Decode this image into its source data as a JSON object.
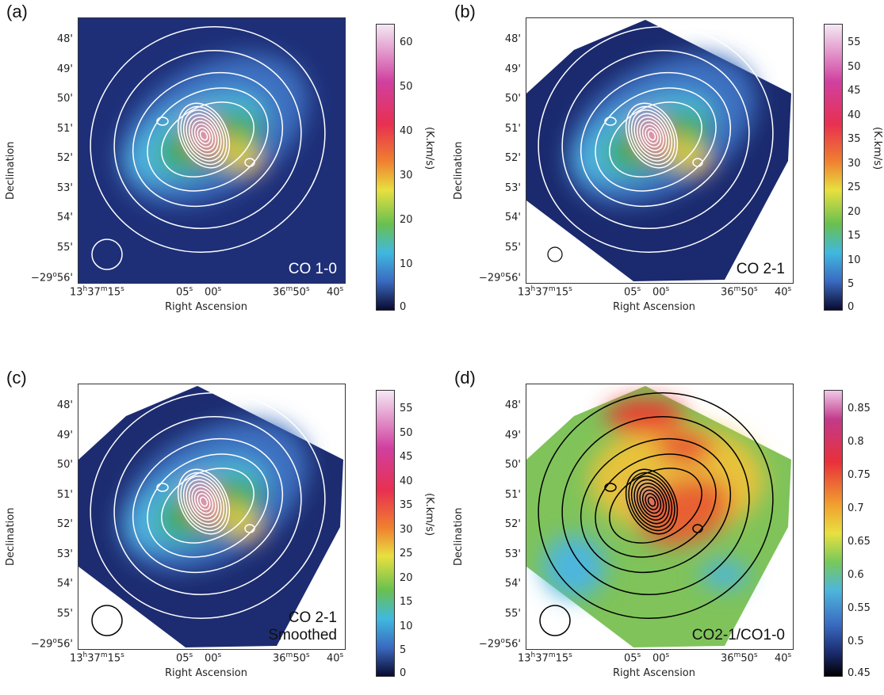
{
  "panels": [
    {
      "id": "a",
      "label": "(a)",
      "map_label": [
        "CO 1-0"
      ],
      "bg": "#1e2f78",
      "overlay": "white",
      "colorbar": {
        "ticks": [
          "60",
          "50",
          "40",
          "30",
          "20",
          "10",
          "0"
        ],
        "unit": "(K.km/s)",
        "scheme": "co"
      }
    },
    {
      "id": "b",
      "label": "(b)",
      "map_label": [
        "CO 2-1"
      ],
      "bg": "#1b2a6e",
      "overlay": "white",
      "colorbar": {
        "ticks": [
          "55",
          "50",
          "45",
          "40",
          "35",
          "30",
          "25",
          "20",
          "15",
          "10",
          "5",
          "0"
        ],
        "unit": "(K.km/s)",
        "scheme": "co"
      }
    },
    {
      "id": "c",
      "label": "(c)",
      "map_label": [
        "CO 2-1",
        "Smoothed"
      ],
      "bg": "#1d2c70",
      "overlay": "white",
      "colorbar": {
        "ticks": [
          "55",
          "50",
          "45",
          "40",
          "35",
          "30",
          "25",
          "20",
          "15",
          "10",
          "5",
          "0"
        ],
        "unit": "(K.km/s)",
        "scheme": "co"
      }
    },
    {
      "id": "d",
      "label": "(d)",
      "map_label": [
        "CO2-1/CO1-0"
      ],
      "bg": "#7fc35a",
      "overlay": "black",
      "colorbar": {
        "ticks": [
          "0.85",
          "0.8",
          "0.75",
          "0.7",
          "0.65",
          "0.6",
          "0.55",
          "0.5",
          "0.45"
        ],
        "unit": "",
        "scheme": "ratio"
      }
    }
  ],
  "axes": {
    "dec_ticks": [
      "48'",
      "49'",
      "50'",
      "51'",
      "52'",
      "53'",
      "54'",
      "55'",
      "−29°56'"
    ],
    "ra_ticks": [
      "13h37m15s",
      "05s",
      "00s",
      "36m50s",
      "40s"
    ],
    "xlabel": "Right Ascension",
    "ylabel": "Declination"
  }
}
